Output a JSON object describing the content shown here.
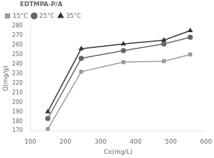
{
  "chart_data": {
    "type": "line",
    "title": "EDTMPA-P/A",
    "x_label": "Ce(mg/L)",
    "y_label": "Q(mg/g)",
    "xlim": [
      100,
      600
    ],
    "ylim": [
      170,
      280
    ],
    "xticks": [
      100,
      200,
      300,
      400,
      500,
      600
    ],
    "yticks": [
      170,
      180,
      190,
      200,
      210,
      220,
      230,
      240,
      250,
      260,
      270,
      280
    ],
    "grid": false,
    "legend": "upper left",
    "series": [
      {
        "name": "15°C",
        "x": [
          150,
          245,
          365,
          480,
          555
        ],
        "values": [
          172,
          232,
          242,
          243,
          250
        ],
        "marker": "square",
        "color": "#999999"
      },
      {
        "name": "25°C",
        "x": [
          150,
          245,
          365,
          480,
          555
        ],
        "values": [
          183,
          246,
          254,
          261,
          268
        ],
        "marker": "circle",
        "color": "#666666"
      },
      {
        "name": "35°C",
        "x": [
          150,
          245,
          365,
          480,
          555
        ],
        "values": [
          190,
          256,
          261,
          265,
          275
        ],
        "marker": "triangle",
        "color": "#333333"
      }
    ]
  }
}
